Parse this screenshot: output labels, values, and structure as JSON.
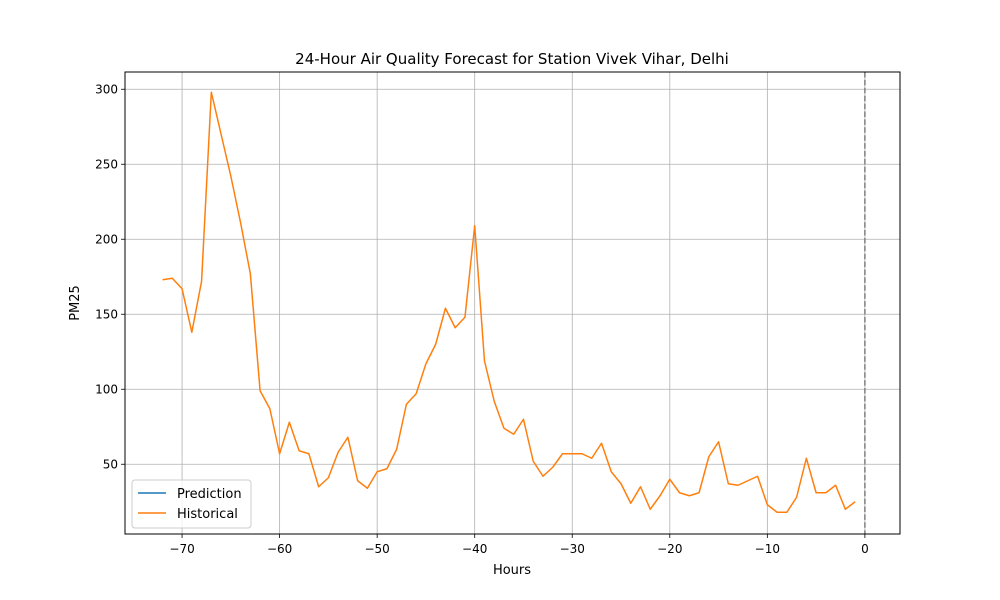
{
  "chart_data": {
    "type": "line",
    "title": "24-Hour Air Quality Forecast for Station Vivek Vihar, Delhi",
    "xlabel": "Hours",
    "ylabel": "PM25",
    "xlim": [
      -75.85,
      3.6
    ],
    "ylim": [
      3.5,
      311.5
    ],
    "xticks": [
      -70,
      -60,
      -50,
      -40,
      -30,
      -20,
      -10,
      0
    ],
    "xtick_labels": [
      "−70",
      "−60",
      "−50",
      "−40",
      "−30",
      "−20",
      "−10",
      "0"
    ],
    "yticks": [
      50,
      100,
      150,
      200,
      250,
      300
    ],
    "ytick_labels": [
      "50",
      "100",
      "150",
      "200",
      "250",
      "300"
    ],
    "grid": true,
    "legend_position": "lower-left",
    "vline": {
      "x": 0,
      "style": "dashed",
      "color": "#808080"
    },
    "series": [
      {
        "name": "Prediction",
        "color": "#1f77b4",
        "x": [],
        "y": []
      },
      {
        "name": "Historical",
        "color": "#ff7f0e",
        "x": [
          -72,
          -71,
          -70,
          -69,
          -68,
          -67,
          -66,
          -65,
          -64,
          -63,
          -62,
          -61,
          -60,
          -59,
          -58,
          -57,
          -56,
          -55,
          -54,
          -53,
          -52,
          -51,
          -50,
          -49,
          -48,
          -47,
          -46,
          -45,
          -44,
          -43,
          -42,
          -41,
          -40,
          -39,
          -38,
          -37,
          -36,
          -35,
          -34,
          -33,
          -32,
          -31,
          -30,
          -29,
          -28,
          -27,
          -26,
          -25,
          -24,
          -23,
          -22,
          -21,
          -20,
          -19,
          -18,
          -17,
          -16,
          -15,
          -14,
          -13,
          -12,
          -11,
          -10,
          -9,
          -8,
          -7,
          -6,
          -5,
          -4,
          -3,
          -2,
          -1
        ],
        "y": [
          173,
          174,
          167,
          138,
          172,
          298,
          270,
          242,
          211,
          177,
          99,
          87,
          57,
          78,
          59,
          57,
          35,
          41,
          58,
          68,
          39,
          34,
          45,
          47,
          60,
          90,
          97,
          117,
          130,
          154,
          141,
          148,
          209,
          119,
          92,
          74,
          70,
          80,
          52,
          42,
          48,
          57,
          57,
          57,
          54,
          64,
          45,
          37,
          24,
          35,
          20,
          29,
          40,
          31,
          29,
          31,
          55,
          65,
          37,
          36,
          39,
          42,
          23,
          18,
          18,
          28,
          54,
          31,
          31,
          36,
          20,
          25
        ]
      }
    ]
  }
}
